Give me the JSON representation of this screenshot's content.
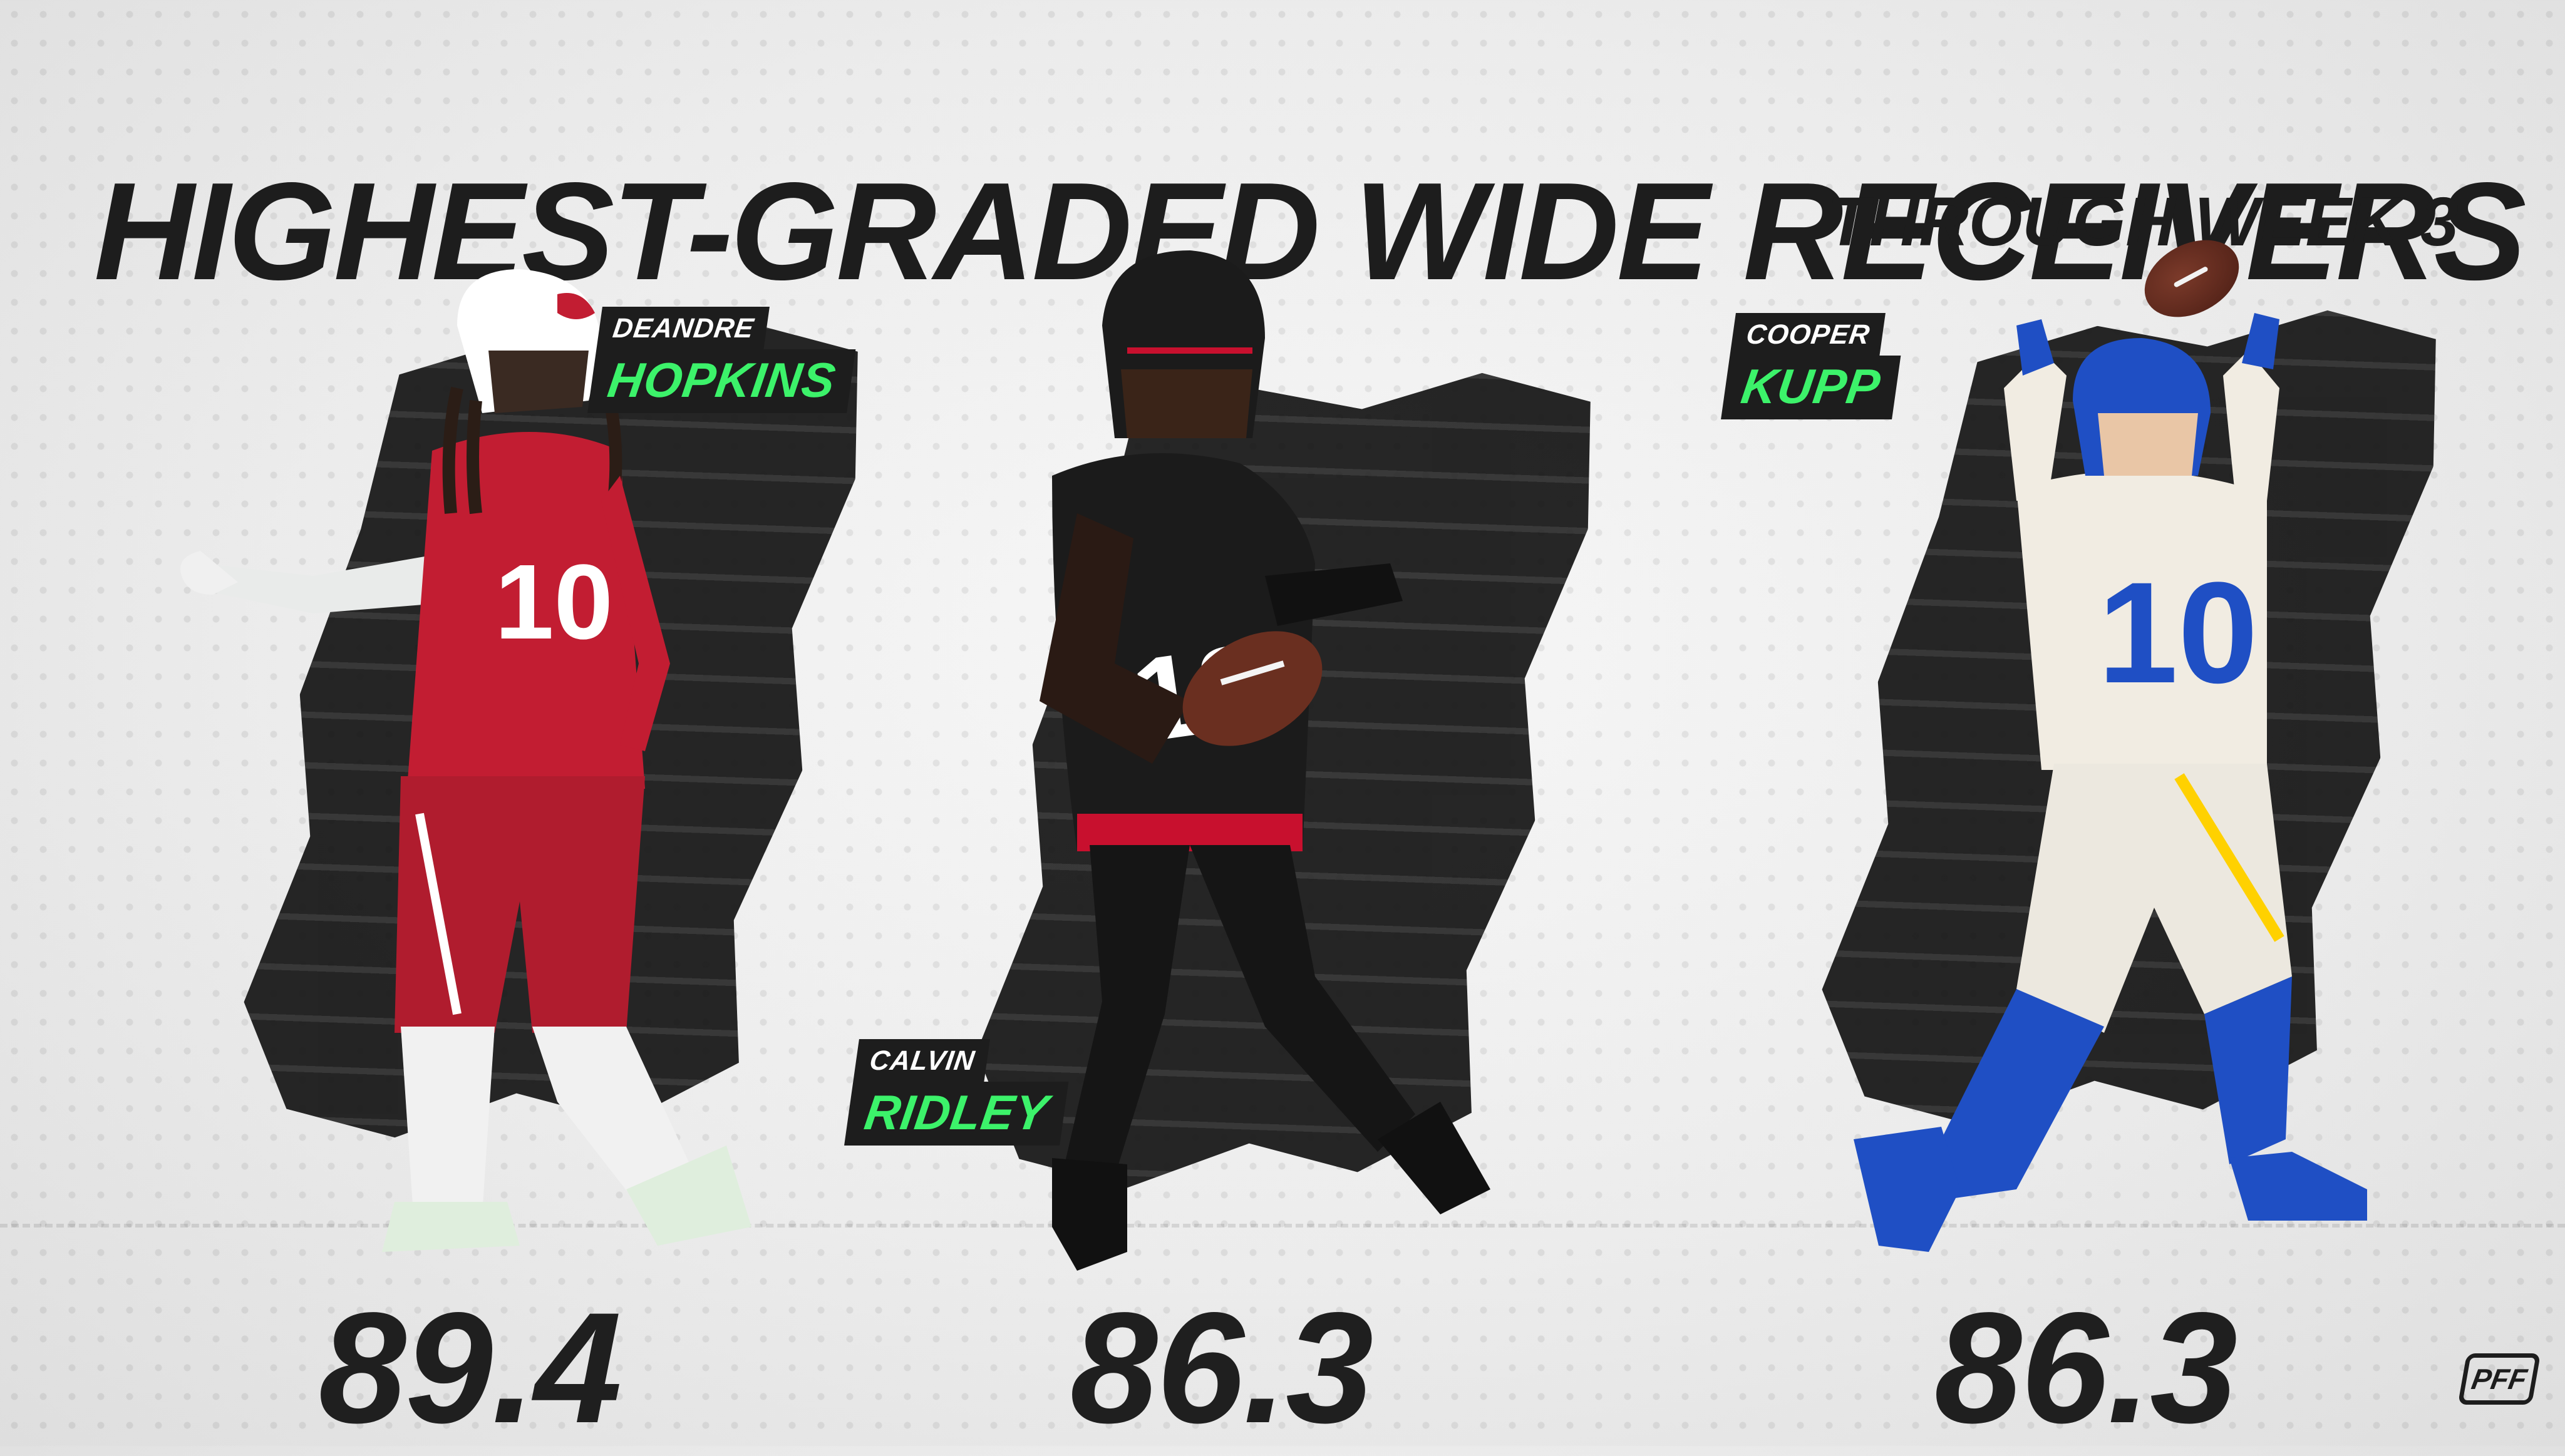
{
  "title": "HIGHEST-GRADED WIDE RECEIVERS",
  "subtitle": "THROUGH WEEK 3",
  "players": [
    {
      "first_name": "DEANDRE",
      "last_name": "HOPKINS",
      "jersey_number": "10",
      "grade": "89.4",
      "team_colors": {
        "jersey": "#c21d32",
        "helmet": "#ffffff",
        "pants": "#b01c2e",
        "trim": "#ffffff"
      }
    },
    {
      "first_name": "CALVIN",
      "last_name": "RIDLEY",
      "jersey_number": "18",
      "grade": "86.3",
      "team_colors": {
        "jersey": "#1b1b1b",
        "helmet": "#1b1b1b",
        "pants": "#151515",
        "trim": "#c8102e"
      }
    },
    {
      "first_name": "COOPER",
      "last_name": "KUPP",
      "jersey_number": "10",
      "grade": "86.3",
      "team_colors": {
        "jersey": "#f1ece2",
        "helmet": "#1f4fc4",
        "pants": "#ece8df",
        "trim": "#ffd100"
      }
    }
  ],
  "logo_text": "PFF",
  "accent_color": "#3cf26a",
  "icons": [
    "football-icon",
    "pff-logo"
  ]
}
